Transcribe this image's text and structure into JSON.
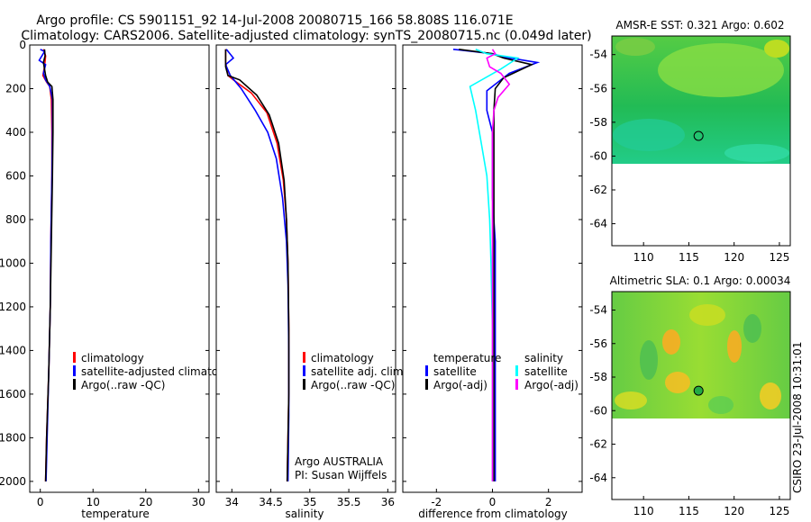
{
  "figure": {
    "title_line1": "Argo profile: CS 5901151_92 14-Jul-2008 20080715_166 58.808S 116.071E",
    "title_line2": "Climatology: CARS2006. Satellite-adjusted climatology: synTS_20080715.nc (0.049d later)",
    "credit": "CSIRO 23-Jul-2008 10:31:01",
    "colors": {
      "climatology": "#ff0000",
      "satellite": "#0000ff",
      "argo": "#000000",
      "sat_salinity": "#00ffff",
      "argo_salinity_adj": "#ff00ff"
    }
  },
  "chart_data": [
    {
      "id": "temperature",
      "type": "line",
      "xlabel": "temperature",
      "xlim": [
        -2,
        32
      ],
      "ylim": [
        0,
        2050
      ],
      "xticks": [
        "0",
        "10",
        "20",
        "30"
      ],
      "yticks": [
        "0",
        "200",
        "400",
        "600",
        "800",
        "1000",
        "1200",
        "1400",
        "1600",
        "1800",
        "2000"
      ],
      "legend": [
        "climatology",
        "satellite-adjusted climatology",
        "Argo(..raw -QC)"
      ],
      "series": [
        {
          "name": "climatology",
          "points": [
            [
              0.6,
              20
            ],
            [
              1.0,
              50
            ],
            [
              0.8,
              100
            ],
            [
              0.5,
              140
            ],
            [
              1.2,
              170
            ],
            [
              1.8,
              190
            ],
            [
              2.1,
              250
            ],
            [
              2.2,
              400
            ],
            [
              2.2,
              600
            ],
            [
              2.0,
              900
            ],
            [
              1.9,
              1200
            ],
            [
              1.6,
              1500
            ],
            [
              1.2,
              1800
            ],
            [
              1.0,
              2000
            ]
          ]
        },
        {
          "name": "satellite-adjusted climatology",
          "points": [
            [
              0.0,
              20
            ],
            [
              0.8,
              30
            ],
            [
              -0.2,
              70
            ],
            [
              1.0,
              90
            ],
            [
              0.6,
              130
            ],
            [
              1.0,
              160
            ],
            [
              1.8,
              190
            ],
            [
              2.3,
              250
            ],
            [
              2.3,
              400
            ],
            [
              2.2,
              600
            ],
            [
              2.0,
              900
            ],
            [
              1.9,
              1200
            ],
            [
              1.6,
              1500
            ],
            [
              1.3,
              1800
            ],
            [
              1.1,
              2000
            ]
          ]
        },
        {
          "name": "Argo(..raw -QC)",
          "points": [
            [
              0.8,
              20
            ],
            [
              0.9,
              50
            ],
            [
              0.6,
              80
            ],
            [
              1.0,
              140
            ],
            [
              1.4,
              170
            ],
            [
              2.2,
              190
            ],
            [
              2.4,
              250
            ],
            [
              2.4,
              400
            ],
            [
              2.3,
              600
            ],
            [
              2.1,
              900
            ],
            [
              1.9,
              1200
            ],
            [
              1.6,
              1500
            ],
            [
              1.2,
              1800
            ],
            [
              1.0,
              2000
            ]
          ]
        }
      ]
    },
    {
      "id": "salinity",
      "type": "line",
      "xlabel": "salinity",
      "xlim": [
        33.8,
        36.1
      ],
      "ylim": [
        0,
        2050
      ],
      "xticks": [
        "34",
        "34.5",
        "35",
        "35.5",
        "36"
      ],
      "yticks": [
        "0",
        "200",
        "400",
        "600",
        "800",
        "1000",
        "1200",
        "1400",
        "1600",
        "1800",
        "2000"
      ],
      "legend": [
        "climatology",
        "satellite adj. clim.",
        "Argo(..raw -QC)"
      ],
      "annotation_line1": "Argo AUSTRALIA",
      "annotation_line2": "PI: Susan Wijffels",
      "series": [
        {
          "name": "climatology",
          "points": [
            [
              33.92,
              20
            ],
            [
              33.92,
              80
            ],
            [
              33.95,
              140
            ],
            [
              34.02,
              160
            ],
            [
              34.25,
              220
            ],
            [
              34.45,
              310
            ],
            [
              34.58,
              450
            ],
            [
              34.66,
              620
            ],
            [
              34.7,
              800
            ],
            [
              34.72,
              1000
            ],
            [
              34.73,
              1300
            ],
            [
              34.73,
              1600
            ],
            [
              34.72,
              1800
            ],
            [
              34.71,
              2000
            ]
          ]
        },
        {
          "name": "satellite adj. clim.",
          "points": [
            [
              33.93,
              20
            ],
            [
              34.02,
              60
            ],
            [
              33.92,
              90
            ],
            [
              33.98,
              140
            ],
            [
              34.12,
              200
            ],
            [
              34.3,
              300
            ],
            [
              34.46,
              400
            ],
            [
              34.57,
              520
            ],
            [
              34.65,
              700
            ],
            [
              34.7,
              900
            ],
            [
              34.72,
              1100
            ],
            [
              34.73,
              1400
            ],
            [
              34.73,
              1700
            ],
            [
              34.72,
              2000
            ]
          ]
        },
        {
          "name": "Argo(..raw -QC)",
          "points": [
            [
              33.92,
              20
            ],
            [
              33.92,
              100
            ],
            [
              33.95,
              140
            ],
            [
              34.1,
              160
            ],
            [
              34.32,
              230
            ],
            [
              34.48,
              320
            ],
            [
              34.6,
              450
            ],
            [
              34.67,
              620
            ],
            [
              34.7,
              800
            ],
            [
              34.72,
              1000
            ],
            [
              34.73,
              1300
            ],
            [
              34.73,
              1600
            ],
            [
              34.72,
              1800
            ],
            [
              34.71,
              2000
            ]
          ]
        }
      ]
    },
    {
      "id": "difference",
      "type": "line",
      "xlabel": "difference from climatology",
      "xlim": [
        -3.2,
        3.2
      ],
      "ylim": [
        0,
        2050
      ],
      "xticks": [
        "-2",
        "0",
        "2"
      ],
      "yticks": [
        "0",
        "200",
        "400",
        "600",
        "800",
        "1000",
        "1200",
        "1400",
        "1600",
        "1800",
        "2000"
      ],
      "legend_temperature_heading": "temperature",
      "legend_salinity_heading": "salinity",
      "legend": [
        "satellite",
        "Argo(-adj)",
        "satellite",
        "Argo(-adj)"
      ],
      "series": [
        {
          "name": "temperature satellite",
          "points": [
            [
              -1.4,
              20
            ],
            [
              0.0,
              40
            ],
            [
              0.4,
              55
            ],
            [
              1.6,
              80
            ],
            [
              0.6,
              130
            ],
            [
              -0.2,
              210
            ],
            [
              -0.2,
              300
            ],
            [
              0.0,
              400
            ],
            [
              0.0,
              700
            ],
            [
              0.1,
              900
            ],
            [
              0.1,
              1200
            ],
            [
              0.1,
              1500
            ],
            [
              0.1,
              1800
            ],
            [
              0.1,
              2000
            ]
          ]
        },
        {
          "name": "temperature Argo(-adj)",
          "points": [
            [
              -1.2,
              20
            ],
            [
              0.0,
              40
            ],
            [
              0.4,
              60
            ],
            [
              1.4,
              90
            ],
            [
              0.4,
              150
            ],
            [
              0.1,
              200
            ],
            [
              0.05,
              300
            ],
            [
              0.05,
              600
            ],
            [
              0.05,
              1000
            ],
            [
              0.05,
              1500
            ],
            [
              0.05,
              2000
            ]
          ]
        },
        {
          "name": "salinity satellite",
          "points": [
            [
              -0.6,
              20
            ],
            [
              -0.2,
              40
            ],
            [
              0.9,
              60
            ],
            [
              0.3,
              110
            ],
            [
              -0.8,
              190
            ],
            [
              -0.6,
              300
            ],
            [
              -0.4,
              450
            ],
            [
              -0.2,
              600
            ],
            [
              -0.1,
              800
            ],
            [
              -0.05,
              1000
            ],
            [
              0.0,
              1300
            ],
            [
              0.0,
              1600
            ],
            [
              0.0,
              1800
            ],
            [
              0.0,
              2000
            ]
          ]
        },
        {
          "name": "salinity Argo(-adj)",
          "points": [
            [
              0.0,
              20
            ],
            [
              0.1,
              40
            ],
            [
              -0.2,
              60
            ],
            [
              -0.1,
              100
            ],
            [
              0.3,
              130
            ],
            [
              0.6,
              180
            ],
            [
              0.2,
              240
            ],
            [
              0.05,
              300
            ],
            [
              0.0,
              400
            ],
            [
              0.0,
              2000
            ]
          ]
        }
      ]
    },
    {
      "id": "sst_map",
      "type": "heatmap",
      "title": "AMSR-E SST: 0.321 Argo: 0.602",
      "xlim": [
        106.5,
        126.2
      ],
      "ylim": [
        -65.3,
        -52.9
      ],
      "xticks": [
        "110",
        "115",
        "120",
        "125"
      ],
      "yticks": [
        "-54",
        "-56",
        "-58",
        "-60",
        "-62",
        "-64"
      ],
      "data_lat_bottom": -60,
      "argo_position": {
        "lon": 116.071,
        "lat": -58.808
      }
    },
    {
      "id": "sla_map",
      "type": "heatmap",
      "title": "Altimetric SLA: 0.1 Argo: 0.00034",
      "xlim": [
        106.5,
        126.2
      ],
      "ylim": [
        -65.3,
        -52.9
      ],
      "xticks": [
        "110",
        "115",
        "120",
        "125"
      ],
      "yticks": [
        "-54",
        "-56",
        "-58",
        "-60",
        "-62",
        "-64"
      ],
      "data_lat_bottom": -60,
      "argo_position": {
        "lon": 116.071,
        "lat": -58.808
      }
    }
  ]
}
